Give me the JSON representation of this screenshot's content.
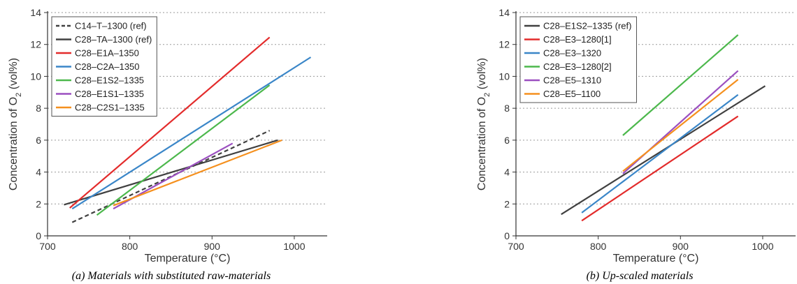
{
  "chart_data": [
    {
      "type": "line",
      "caption": "(a) Materials with substituted raw-materials",
      "xlabel": "Temperature (°C)",
      "ylabel": "Concentration of O2 (vol%)",
      "xlim": [
        700,
        1040
      ],
      "ylim": [
        0,
        14
      ],
      "xticks": [
        700,
        800,
        900,
        1000
      ],
      "yticks": [
        0,
        2,
        4,
        6,
        8,
        10,
        12,
        14
      ],
      "grid": "horizontal-dotted",
      "legend_position": "top-left",
      "series": [
        {
          "name": "C14–T–1300 (ref)",
          "color": "#404040",
          "dash": true,
          "x": [
            730,
            970
          ],
          "y": [
            0.85,
            6.6
          ]
        },
        {
          "name": "C28–TA–1300 (ref)",
          "color": "#404040",
          "dash": false,
          "x": [
            720,
            980
          ],
          "y": [
            1.95,
            6.0
          ]
        },
        {
          "name": "C28–E1A–1350",
          "color": "#e32b2b",
          "dash": false,
          "x": [
            727,
            970
          ],
          "y": [
            1.75,
            12.45
          ]
        },
        {
          "name": "C28–C2A–1350",
          "color": "#3a86c8",
          "dash": false,
          "x": [
            730,
            1020
          ],
          "y": [
            1.7,
            11.2
          ]
        },
        {
          "name": "C28–E1S2–1335",
          "color": "#4cb84c",
          "dash": false,
          "x": [
            760,
            970
          ],
          "y": [
            1.3,
            9.45
          ]
        },
        {
          "name": "C28–E1S1–1335",
          "color": "#9b4fc0",
          "dash": false,
          "x": [
            780,
            925
          ],
          "y": [
            1.7,
            5.8
          ]
        },
        {
          "name": "C28–C2S1–1335",
          "color": "#f5901e",
          "dash": false,
          "x": [
            780,
            985
          ],
          "y": [
            1.9,
            6.0
          ]
        }
      ]
    },
    {
      "type": "line",
      "caption": "(b) Up-scaled materials",
      "xlabel": "Temperature (°C)",
      "ylabel": "Concentration of O2 (vol%)",
      "xlim": [
        700,
        1040
      ],
      "ylim": [
        0,
        14
      ],
      "xticks": [
        700,
        800,
        900,
        1000
      ],
      "yticks": [
        0,
        2,
        4,
        6,
        8,
        10,
        12,
        14
      ],
      "grid": "horizontal-dotted",
      "legend_position": "top-left",
      "series": [
        {
          "name": "C28–E1S2–1335 (ref)",
          "color": "#404040",
          "dash": false,
          "x": [
            755,
            1003
          ],
          "y": [
            1.35,
            9.4
          ]
        },
        {
          "name": "C28–E3–1280[1]",
          "color": "#e32b2b",
          "dash": false,
          "x": [
            780,
            970
          ],
          "y": [
            0.95,
            7.5
          ]
        },
        {
          "name": "C28–E3–1320",
          "color": "#3a86c8",
          "dash": false,
          "x": [
            780,
            970
          ],
          "y": [
            1.45,
            8.85
          ]
        },
        {
          "name": "C28–E3–1280[2]",
          "color": "#4cb84c",
          "dash": false,
          "x": [
            830,
            970
          ],
          "y": [
            6.3,
            12.6
          ]
        },
        {
          "name": "C28–E5–1310",
          "color": "#9b4fc0",
          "dash": false,
          "x": [
            830,
            970
          ],
          "y": [
            3.9,
            10.35
          ]
        },
        {
          "name": "C28–E5–1100",
          "color": "#f5901e",
          "dash": false,
          "x": [
            830,
            970
          ],
          "y": [
            4.05,
            9.8
          ]
        }
      ]
    }
  ]
}
